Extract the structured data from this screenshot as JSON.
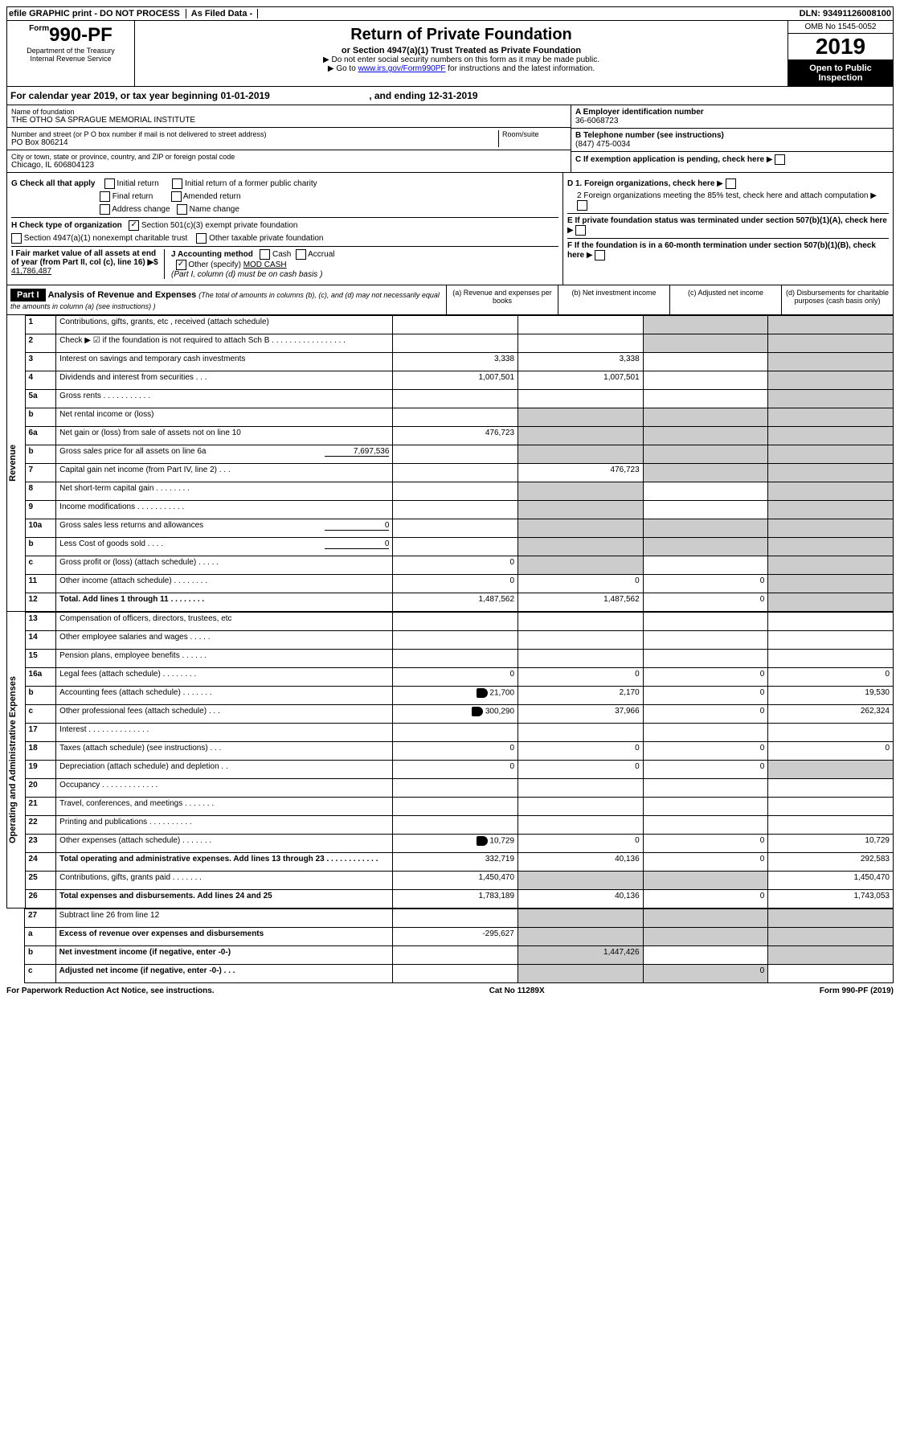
{
  "top": {
    "efile": "efile GRAPHIC print - DO NOT PROCESS",
    "asfiled": "As Filed Data -",
    "dln": "DLN: 93491126008100"
  },
  "header": {
    "form": "990-PF",
    "formPrefix": "Form",
    "dept": "Department of the Treasury",
    "irs": "Internal Revenue Service",
    "title": "Return of Private Foundation",
    "sub": "or Section 4947(a)(1) Trust Treated as Private Foundation",
    "note1": "▶ Do not enter social security numbers on this form as it may be made public.",
    "note2": "▶ Go to ",
    "link": "www.irs.gov/Form990PF",
    "note3": " for instructions and the latest information.",
    "omb": "OMB No 1545-0052",
    "year": "2019",
    "open": "Open to Public Inspection"
  },
  "calyear": {
    "pre": "For calendar year 2019, or tax year beginning ",
    "begin": "01-01-2019",
    "mid": ", and ending ",
    "end": "12-31-2019"
  },
  "info": {
    "nameLbl": "Name of foundation",
    "name": "THE OTHO SA SPRAGUE MEMORIAL INSTITUTE",
    "addrLbl": "Number and street (or P O  box number if mail is not delivered to street address)",
    "roomLbl": "Room/suite",
    "addr": "PO Box 806214",
    "cityLbl": "City or town, state or province, country, and ZIP or foreign postal code",
    "city": "Chicago, IL  606804123",
    "einLbl": "A Employer identification number",
    "ein": "36-6068723",
    "telLbl": "B Telephone number (see instructions)",
    "tel": "(847) 475-0034",
    "cLbl": "C If exemption application is pending, check here"
  },
  "g": {
    "g": "G Check all that apply",
    "initial": "Initial return",
    "initialFormer": "Initial return of a former public charity",
    "final": "Final return",
    "amended": "Amended return",
    "addrChg": "Address change",
    "nameChg": "Name change",
    "h": "H Check type of organization",
    "h501": "Section 501(c)(3) exempt private foundation",
    "h4947": "Section 4947(a)(1) nonexempt charitable trust",
    "hOther": "Other taxable private foundation",
    "i": "I Fair market value of all assets at end of year (from Part II, col  (c), line 16) ▶$",
    "iVal": "41,786,487",
    "j": "J Accounting method",
    "cash": "Cash",
    "accrual": "Accrual",
    "other": "Other (specify)",
    "otherVal": "MOD  CASH",
    "jNote": "(Part I, column (d) must be on cash basis )",
    "d1": "D 1. Foreign organizations, check here",
    "d2": "2 Foreign organizations meeting the 85% test, check here and attach computation",
    "e": "E If private foundation status was terminated under section 507(b)(1)(A), check here",
    "f": "F If the foundation is in a 60-month termination under section 507(b)(1)(B), check here"
  },
  "part1": {
    "hdr": "Part I",
    "title": "Analysis of Revenue and Expenses",
    "note": "(The total of amounts in columns (b), (c), and (d) may not necessarily equal the amounts in column (a) (see instructions) )",
    "colA": "(a) Revenue and expenses per books",
    "colB": "(b) Net investment income",
    "colC": "(c) Adjusted net income",
    "colD": "(d) Disbursements for charitable purposes (cash basis only)"
  },
  "sideRev": "Revenue",
  "sideExp": "Operating and Administrative Expenses",
  "rows": {
    "r1": {
      "n": "1",
      "d": "Contributions, gifts, grants, etc , received (attach schedule)"
    },
    "r2": {
      "n": "2",
      "d": "Check ▶ ☑ if the foundation is not required to attach Sch  B  .  .  .  .  .  .  .  .  .  .  .  .  .  .  .  .  ."
    },
    "r3": {
      "n": "3",
      "d": "Interest on savings and temporary cash investments",
      "a": "3,338",
      "b": "3,338"
    },
    "r4": {
      "n": "4",
      "d": "Dividends and interest from securities  .  .  .",
      "a": "1,007,501",
      "b": "1,007,501"
    },
    "r5a": {
      "n": "5a",
      "d": "Gross rents  .  .  .  .  .  .  .  .  .  .  ."
    },
    "r5b": {
      "n": "b",
      "d": "Net rental income or (loss)"
    },
    "r6a": {
      "n": "6a",
      "d": "Net gain or (loss) from sale of assets not on line 10",
      "a": "476,723"
    },
    "r6b": {
      "n": "b",
      "d": "Gross sales price for all assets on line 6a",
      "inline": "7,697,536"
    },
    "r7": {
      "n": "7",
      "d": "Capital gain net income (from Part IV, line 2)  .  .  .",
      "b": "476,723"
    },
    "r8": {
      "n": "8",
      "d": "Net short-term capital gain  .  .  .  .  .  .  .  ."
    },
    "r9": {
      "n": "9",
      "d": "Income modifications  .  .  .  .  .  .  .  .  .  .  ."
    },
    "r10a": {
      "n": "10a",
      "d": "Gross sales less returns and allowances",
      "inline": "0"
    },
    "r10b": {
      "n": "b",
      "d": "Less  Cost of goods sold  .  .  .  .",
      "inline": "0"
    },
    "r10c": {
      "n": "c",
      "d": "Gross profit or (loss) (attach schedule)  .  .  .  .  .",
      "a": "0"
    },
    "r11": {
      "n": "11",
      "d": "Other income (attach schedule)  .  .  .  .  .  .  .  .",
      "a": "0",
      "b": "0",
      "c": "0"
    },
    "r12": {
      "n": "12",
      "d": "Total. Add lines 1 through 11  .  .  .  .  .  .  .  .",
      "a": "1,487,562",
      "b": "1,487,562",
      "c": "0"
    },
    "r13": {
      "n": "13",
      "d": "Compensation of officers, directors, trustees, etc"
    },
    "r14": {
      "n": "14",
      "d": "Other employee salaries and wages  .  .  .  .  ."
    },
    "r15": {
      "n": "15",
      "d": "Pension plans, employee benefits  .  .  .  .  .  ."
    },
    "r16a": {
      "n": "16a",
      "d": "Legal fees (attach schedule)  .  .  .  .  .  .  .  .",
      "a": "0",
      "b": "0",
      "c": "0",
      "dd": "0"
    },
    "r16b": {
      "n": "b",
      "d": "Accounting fees (attach schedule)  .  .  .  .  .  .  .",
      "a": "21,700",
      "b": "2,170",
      "c": "0",
      "dd": "19,530",
      "icon": true
    },
    "r16c": {
      "n": "c",
      "d": "Other professional fees (attach schedule)  .  .  .",
      "a": "300,290",
      "b": "37,966",
      "c": "0",
      "dd": "262,324",
      "icon": true
    },
    "r17": {
      "n": "17",
      "d": "Interest  .  .  .  .  .  .  .  .  .  .  .  .  .  ."
    },
    "r18": {
      "n": "18",
      "d": "Taxes (attach schedule) (see instructions)  .  .  .",
      "a": "0",
      "b": "0",
      "c": "0",
      "dd": "0"
    },
    "r19": {
      "n": "19",
      "d": "Depreciation (attach schedule) and depletion  .  .",
      "a": "0",
      "b": "0",
      "c": "0"
    },
    "r20": {
      "n": "20",
      "d": "Occupancy  .  .  .  .  .  .  .  .  .  .  .  .  ."
    },
    "r21": {
      "n": "21",
      "d": "Travel, conferences, and meetings  .  .  .  .  .  .  ."
    },
    "r22": {
      "n": "22",
      "d": "Printing and publications  .  .  .  .  .  .  .  .  .  ."
    },
    "r23": {
      "n": "23",
      "d": "Other expenses (attach schedule)  .  .  .  .  .  .  .",
      "a": "10,729",
      "b": "0",
      "c": "0",
      "dd": "10,729",
      "icon": true
    },
    "r24": {
      "n": "24",
      "d": "Total operating and administrative expenses. Add lines 13 through 23  .  .  .  .  .  .  .  .  .  .  .  .",
      "a": "332,719",
      "b": "40,136",
      "c": "0",
      "dd": "292,583"
    },
    "r25": {
      "n": "25",
      "d": "Contributions, gifts, grants paid  .  .  .  .  .  .  .",
      "a": "1,450,470",
      "dd": "1,450,470"
    },
    "r26": {
      "n": "26",
      "d": "Total expenses and disbursements. Add lines 24 and 25",
      "a": "1,783,189",
      "b": "40,136",
      "c": "0",
      "dd": "1,743,053"
    },
    "r27": {
      "n": "27",
      "d": "Subtract line 26 from line 12"
    },
    "r27a": {
      "n": "a",
      "d": "Excess of revenue over expenses and disbursements",
      "a": "-295,627"
    },
    "r27b": {
      "n": "b",
      "d": "Net investment income (if negative, enter -0-)",
      "b": "1,447,426"
    },
    "r27c": {
      "n": "c",
      "d": "Adjusted net income (if negative, enter -0-)  .  .  .",
      "c": "0"
    }
  },
  "footer": {
    "left": "For Paperwork Reduction Act Notice, see instructions.",
    "mid": "Cat  No  11289X",
    "right": "Form 990-PF (2019)"
  }
}
